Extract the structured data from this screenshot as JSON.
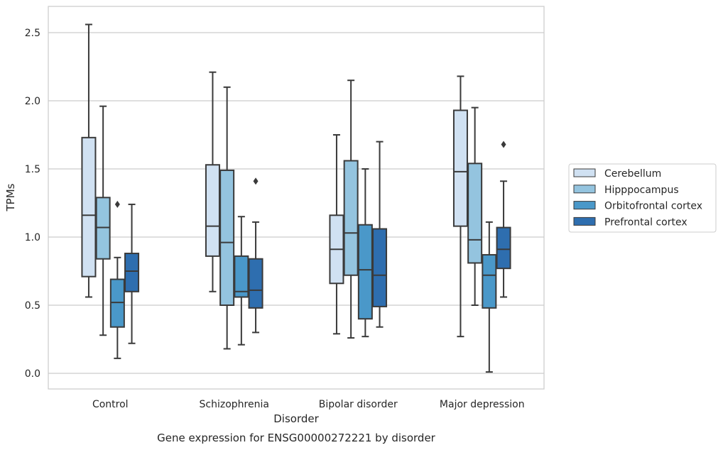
{
  "chart_data": {
    "type": "box",
    "title": "",
    "caption": "Gene expression for ENSG00000272221 by disorder",
    "xlabel": "Disorder",
    "ylabel": "TPMs",
    "ylim": [
      -0.11,
      2.7
    ],
    "yticks": [
      0.0,
      0.5,
      1.0,
      1.5,
      2.0,
      2.5
    ],
    "ytick_labels": [
      "0.0",
      "0.5",
      "1.0",
      "1.5",
      "2.0",
      "2.5"
    ],
    "grid": "horizontal",
    "legend_position": "right",
    "categories": [
      "Control",
      "Schizophrenia",
      "Bipolar disorder",
      "Major depression"
    ],
    "series": [
      {
        "name": "Cerebellum",
        "color": "#d0e1f2",
        "boxes": [
          {
            "whislo": 0.56,
            "q1": 0.71,
            "med": 1.16,
            "q3": 1.73,
            "whishi": 2.56,
            "fliers": []
          },
          {
            "whislo": 0.6,
            "q1": 0.86,
            "med": 1.08,
            "q3": 1.53,
            "whishi": 2.21,
            "fliers": []
          },
          {
            "whislo": 0.29,
            "q1": 0.66,
            "med": 0.91,
            "q3": 1.16,
            "whishi": 1.75,
            "fliers": []
          },
          {
            "whislo": 0.27,
            "q1": 1.08,
            "med": 1.48,
            "q3": 1.93,
            "whishi": 2.18,
            "fliers": []
          }
        ]
      },
      {
        "name": "Hipppocampus",
        "color": "#94c4df",
        "boxes": [
          {
            "whislo": 0.28,
            "q1": 0.84,
            "med": 1.07,
            "q3": 1.29,
            "whishi": 1.96,
            "fliers": []
          },
          {
            "whislo": 0.18,
            "q1": 0.5,
            "med": 0.96,
            "q3": 1.49,
            "whishi": 2.1,
            "fliers": []
          },
          {
            "whislo": 0.26,
            "q1": 0.72,
            "med": 1.03,
            "q3": 1.56,
            "whishi": 2.15,
            "fliers": []
          },
          {
            "whislo": 0.5,
            "q1": 0.81,
            "med": 0.98,
            "q3": 1.54,
            "whishi": 1.95,
            "fliers": []
          }
        ]
      },
      {
        "name": "Orbitofrontal cortex",
        "color": "#4a98c9",
        "boxes": [
          {
            "whislo": 0.11,
            "q1": 0.34,
            "med": 0.52,
            "q3": 0.69,
            "whishi": 0.85,
            "fliers": [
              1.24
            ]
          },
          {
            "whislo": 0.21,
            "q1": 0.56,
            "med": 0.6,
            "q3": 0.86,
            "whishi": 1.15,
            "fliers": []
          },
          {
            "whislo": 0.27,
            "q1": 0.4,
            "med": 0.76,
            "q3": 1.09,
            "whishi": 1.5,
            "fliers": []
          },
          {
            "whislo": 0.01,
            "q1": 0.48,
            "med": 0.72,
            "q3": 0.87,
            "whishi": 1.11,
            "fliers": []
          }
        ]
      },
      {
        "name": "Prefrontal cortex",
        "color": "#2e6eaf",
        "boxes": [
          {
            "whislo": 0.22,
            "q1": 0.6,
            "med": 0.75,
            "q3": 0.88,
            "whishi": 1.24,
            "fliers": []
          },
          {
            "whislo": 0.3,
            "q1": 0.48,
            "med": 0.61,
            "q3": 0.84,
            "whishi": 1.11,
            "fliers": [
              1.41
            ]
          },
          {
            "whislo": 0.34,
            "q1": 0.49,
            "med": 0.72,
            "q3": 1.06,
            "whishi": 1.7,
            "fliers": []
          },
          {
            "whislo": 0.56,
            "q1": 0.77,
            "med": 0.91,
            "q3": 1.07,
            "whishi": 1.41,
            "fliers": [
              1.68
            ]
          }
        ]
      }
    ]
  }
}
